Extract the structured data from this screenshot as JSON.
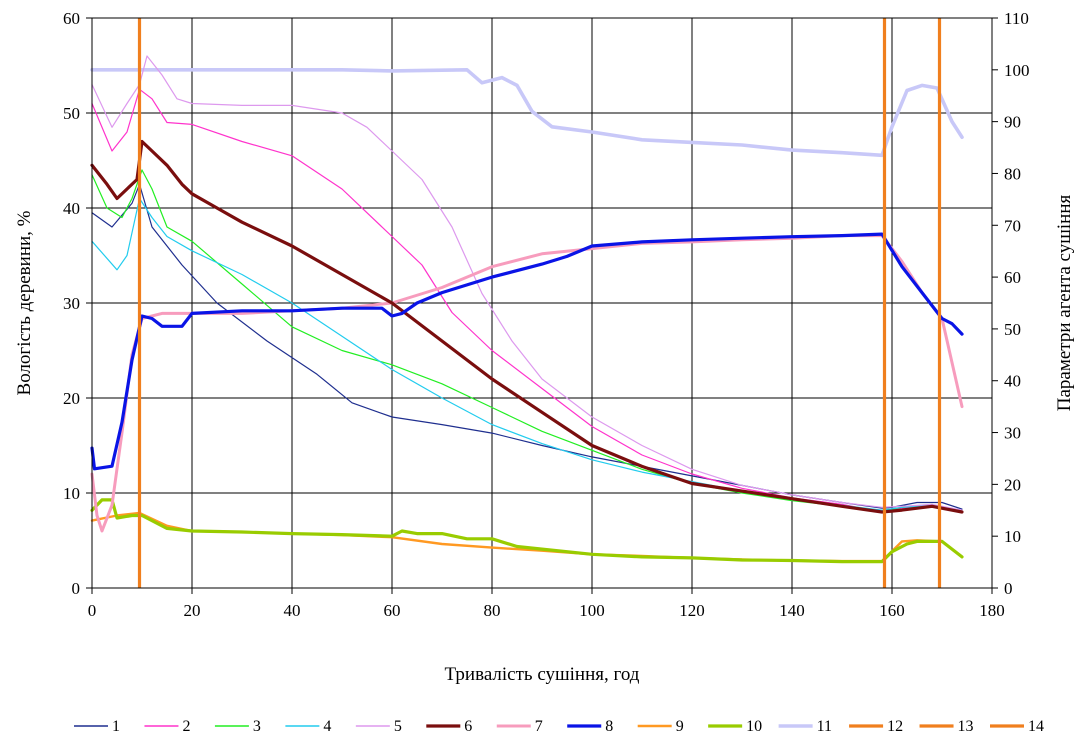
{
  "chart_data": {
    "type": "line",
    "xlabel": "Тривалість сушіння, год",
    "ylabel": "Вологість деревини, %",
    "y2label": "Параметри агента сушіння",
    "xlim": [
      0,
      180
    ],
    "ylim": [
      0,
      60
    ],
    "y2lim": [
      0,
      110
    ],
    "xticks": [
      "0",
      "20",
      "40",
      "60",
      "80",
      "100",
      "120",
      "140",
      "160",
      "180"
    ],
    "yticks": [
      "0",
      "10",
      "20",
      "30",
      "40",
      "50",
      "60"
    ],
    "y2ticks": [
      "0",
      "10",
      "20",
      "30",
      "40",
      "50",
      "60",
      "70",
      "80",
      "90",
      "100",
      "110"
    ],
    "grid": true,
    "legend_position": "bottom",
    "series": [
      {
        "name": "1",
        "axis": "left",
        "color": "#1f2f8f",
        "width": 1.2,
        "points": [
          [
            0,
            39.5
          ],
          [
            4,
            38
          ],
          [
            8,
            40.5
          ],
          [
            9.5,
            42.5
          ],
          [
            12,
            38
          ],
          [
            18,
            34
          ],
          [
            25,
            30
          ],
          [
            35,
            26
          ],
          [
            45,
            22.5
          ],
          [
            52,
            19.5
          ],
          [
            60,
            18
          ],
          [
            70,
            17.2
          ],
          [
            80,
            16.3
          ],
          [
            90,
            15
          ],
          [
            100,
            13.8
          ],
          [
            110,
            12.8
          ],
          [
            120,
            11.8
          ],
          [
            130,
            10.8
          ],
          [
            140,
            9.8
          ],
          [
            150,
            9
          ],
          [
            158,
            8.4
          ],
          [
            160,
            8.5
          ],
          [
            165,
            9
          ],
          [
            170,
            9
          ],
          [
            174,
            8.3
          ]
        ]
      },
      {
        "name": "2",
        "axis": "left",
        "color": "#ff33cc",
        "width": 1.2,
        "points": [
          [
            0,
            51
          ],
          [
            4,
            46
          ],
          [
            7,
            48
          ],
          [
            9.5,
            52.5
          ],
          [
            12,
            51.5
          ],
          [
            15,
            49
          ],
          [
            20,
            48.8
          ],
          [
            30,
            47
          ],
          [
            40,
            45.5
          ],
          [
            50,
            42
          ],
          [
            60,
            37
          ],
          [
            66,
            34
          ],
          [
            72,
            29
          ],
          [
            80,
            25
          ],
          [
            90,
            21
          ],
          [
            100,
            17
          ],
          [
            110,
            14
          ],
          [
            120,
            12
          ],
          [
            130,
            10.5
          ],
          [
            140,
            9.5
          ],
          [
            150,
            8.8
          ],
          [
            158,
            8
          ],
          [
            162,
            8.4
          ],
          [
            168,
            8.6
          ],
          [
            174,
            8
          ]
        ]
      },
      {
        "name": "3",
        "axis": "left",
        "color": "#22ee22",
        "width": 1.2,
        "points": [
          [
            0,
            43.5
          ],
          [
            3,
            40
          ],
          [
            6,
            39
          ],
          [
            8,
            41
          ],
          [
            10,
            44
          ],
          [
            12,
            42
          ],
          [
            15,
            38
          ],
          [
            20,
            36.5
          ],
          [
            30,
            32
          ],
          [
            40,
            27.5
          ],
          [
            50,
            25
          ],
          [
            60,
            23.5
          ],
          [
            70,
            21.5
          ],
          [
            80,
            19
          ],
          [
            90,
            16.5
          ],
          [
            100,
            14.5
          ],
          [
            110,
            12.5
          ],
          [
            120,
            11
          ],
          [
            130,
            10
          ],
          [
            140,
            9.2
          ],
          [
            150,
            8.6
          ],
          [
            158,
            8.1
          ],
          [
            162,
            8.5
          ],
          [
            168,
            8.7
          ],
          [
            174,
            8
          ]
        ]
      },
      {
        "name": "4",
        "axis": "left",
        "color": "#22ccee",
        "width": 1.2,
        "points": [
          [
            0,
            36.5
          ],
          [
            5,
            33.5
          ],
          [
            7,
            35
          ],
          [
            9.5,
            41
          ],
          [
            12,
            39
          ],
          [
            15,
            37
          ],
          [
            20,
            35.5
          ],
          [
            30,
            33
          ],
          [
            40,
            30
          ],
          [
            50,
            26.5
          ],
          [
            60,
            23
          ],
          [
            70,
            20
          ],
          [
            80,
            17.2
          ],
          [
            90,
            15.2
          ],
          [
            100,
            13.5
          ],
          [
            110,
            12.2
          ],
          [
            120,
            11.2
          ],
          [
            130,
            10.2
          ],
          [
            140,
            9.3
          ],
          [
            150,
            8.7
          ],
          [
            158,
            8.2
          ],
          [
            162,
            8.5
          ],
          [
            168,
            8.7
          ],
          [
            174,
            8
          ]
        ]
      },
      {
        "name": "5",
        "axis": "left",
        "color": "#dd99ee",
        "width": 1.2,
        "points": [
          [
            0,
            53
          ],
          [
            4,
            48.5
          ],
          [
            7,
            51
          ],
          [
            9.5,
            53
          ],
          [
            11,
            56
          ],
          [
            14,
            54
          ],
          [
            17,
            51.5
          ],
          [
            20,
            51
          ],
          [
            30,
            50.8
          ],
          [
            40,
            50.8
          ],
          [
            50,
            50
          ],
          [
            55,
            48.5
          ],
          [
            60,
            46
          ],
          [
            66,
            43
          ],
          [
            72,
            38
          ],
          [
            78,
            31
          ],
          [
            84,
            26
          ],
          [
            90,
            22
          ],
          [
            100,
            18
          ],
          [
            110,
            15
          ],
          [
            120,
            12.5
          ],
          [
            130,
            10.8
          ],
          [
            140,
            9.8
          ],
          [
            150,
            9
          ],
          [
            158,
            8.5
          ],
          [
            162,
            8.6
          ],
          [
            168,
            8.8
          ],
          [
            174,
            8.2
          ]
        ]
      },
      {
        "name": "6",
        "axis": "left",
        "color": "#7a0e0e",
        "width": 3.2,
        "points": [
          [
            0,
            44.5
          ],
          [
            3,
            42.5
          ],
          [
            5,
            41
          ],
          [
            7,
            42
          ],
          [
            9,
            43
          ],
          [
            10,
            47
          ],
          [
            12,
            46
          ],
          [
            15,
            44.5
          ],
          [
            18,
            42.5
          ],
          [
            20,
            41.5
          ],
          [
            25,
            40
          ],
          [
            30,
            38.5
          ],
          [
            40,
            36
          ],
          [
            50,
            33
          ],
          [
            60,
            30
          ],
          [
            70,
            26
          ],
          [
            80,
            22
          ],
          [
            90,
            18.5
          ],
          [
            100,
            15
          ],
          [
            110,
            12.8
          ],
          [
            120,
            11
          ],
          [
            130,
            10.2
          ],
          [
            140,
            9.4
          ],
          [
            150,
            8.6
          ],
          [
            158,
            8
          ],
          [
            162,
            8.2
          ],
          [
            168,
            8.6
          ],
          [
            174,
            8
          ]
        ]
      },
      {
        "name": "7",
        "axis": "right",
        "color": "#f79cbd",
        "width": 3.0,
        "points": [
          [
            0,
            22
          ],
          [
            1,
            14
          ],
          [
            2,
            11
          ],
          [
            4,
            16
          ],
          [
            6,
            30
          ],
          [
            8,
            45
          ],
          [
            10,
            52
          ],
          [
            14,
            53
          ],
          [
            20,
            53
          ],
          [
            30,
            53
          ],
          [
            40,
            53.5
          ],
          [
            50,
            54
          ],
          [
            60,
            55
          ],
          [
            70,
            58
          ],
          [
            80,
            62
          ],
          [
            90,
            64.5
          ],
          [
            100,
            65.5
          ],
          [
            110,
            66.5
          ],
          [
            120,
            66.8
          ],
          [
            130,
            67.2
          ],
          [
            140,
            67.5
          ],
          [
            150,
            68
          ],
          [
            158,
            68
          ],
          [
            162,
            63
          ],
          [
            166,
            57
          ],
          [
            170,
            52
          ],
          [
            174,
            35
          ]
        ]
      },
      {
        "name": "8",
        "axis": "right",
        "color": "#0a14e6",
        "width": 3.2,
        "points": [
          [
            0,
            27
          ],
          [
            0.5,
            23
          ],
          [
            4,
            23.5
          ],
          [
            6,
            32
          ],
          [
            8,
            44
          ],
          [
            10,
            52.5
          ],
          [
            12,
            52
          ],
          [
            14,
            50.5
          ],
          [
            18,
            50.5
          ],
          [
            20,
            53
          ],
          [
            30,
            53.5
          ],
          [
            40,
            53.5
          ],
          [
            50,
            54
          ],
          [
            58,
            54
          ],
          [
            60,
            52.5
          ],
          [
            62,
            53
          ],
          [
            65,
            55
          ],
          [
            70,
            57
          ],
          [
            75,
            58.5
          ],
          [
            80,
            60
          ],
          [
            90,
            62.5
          ],
          [
            95,
            64
          ],
          [
            100,
            66
          ],
          [
            110,
            66.8
          ],
          [
            120,
            67.2
          ],
          [
            130,
            67.5
          ],
          [
            140,
            67.8
          ],
          [
            150,
            68
          ],
          [
            158,
            68.3
          ],
          [
            162,
            62
          ],
          [
            166,
            57
          ],
          [
            170,
            52
          ],
          [
            172,
            51
          ],
          [
            174,
            49
          ]
        ]
      },
      {
        "name": "9",
        "axis": "right",
        "color": "#ff9922",
        "width": 2.4,
        "points": [
          [
            0,
            13
          ],
          [
            5,
            14
          ],
          [
            9.5,
            14.5
          ],
          [
            15,
            12
          ],
          [
            20,
            11
          ],
          [
            30,
            10.8
          ],
          [
            40,
            10.5
          ],
          [
            50,
            10.2
          ],
          [
            60,
            9.8
          ],
          [
            70,
            8.5
          ],
          [
            80,
            7.8
          ],
          [
            90,
            7.2
          ],
          [
            100,
            6.5
          ],
          [
            110,
            6.2
          ],
          [
            120,
            5.8
          ],
          [
            130,
            5.5
          ],
          [
            140,
            5.3
          ],
          [
            150,
            5.2
          ],
          [
            158,
            5.2
          ],
          [
            162,
            9
          ],
          [
            165,
            9.2
          ],
          [
            170,
            9
          ],
          [
            174,
            6
          ]
        ]
      },
      {
        "name": "10",
        "axis": "right",
        "color": "#99cc00",
        "width": 3.2,
        "points": [
          [
            0,
            15
          ],
          [
            2,
            17
          ],
          [
            4,
            17
          ],
          [
            5,
            13.5
          ],
          [
            8,
            14
          ],
          [
            10,
            14
          ],
          [
            15,
            11.5
          ],
          [
            20,
            11
          ],
          [
            30,
            10.8
          ],
          [
            40,
            10.5
          ],
          [
            50,
            10.3
          ],
          [
            60,
            10
          ],
          [
            62,
            11
          ],
          [
            65,
            10.5
          ],
          [
            70,
            10.5
          ],
          [
            75,
            9.5
          ],
          [
            80,
            9.5
          ],
          [
            85,
            8
          ],
          [
            90,
            7.5
          ],
          [
            100,
            6.5
          ],
          [
            110,
            6
          ],
          [
            120,
            5.8
          ],
          [
            130,
            5.4
          ],
          [
            140,
            5.3
          ],
          [
            150,
            5.1
          ],
          [
            158,
            5.1
          ],
          [
            160,
            7
          ],
          [
            163,
            8.5
          ],
          [
            165,
            9
          ],
          [
            170,
            9
          ],
          [
            172,
            7.5
          ],
          [
            174,
            6
          ]
        ]
      },
      {
        "name": "11",
        "axis": "right",
        "color": "#c8c8f8",
        "width": 3.6,
        "points": [
          [
            0,
            100
          ],
          [
            10,
            100
          ],
          [
            20,
            100
          ],
          [
            40,
            100
          ],
          [
            50,
            100
          ],
          [
            60,
            99.8
          ],
          [
            75,
            100
          ],
          [
            78,
            97.5
          ],
          [
            82,
            98.5
          ],
          [
            85,
            97
          ],
          [
            88,
            92
          ],
          [
            92,
            89
          ],
          [
            100,
            88
          ],
          [
            110,
            86.5
          ],
          [
            120,
            86
          ],
          [
            130,
            85.5
          ],
          [
            140,
            84.5
          ],
          [
            150,
            84
          ],
          [
            158,
            83.5
          ],
          [
            160,
            89
          ],
          [
            163,
            96
          ],
          [
            166,
            97
          ],
          [
            169,
            96.5
          ],
          [
            172,
            90
          ],
          [
            174,
            87
          ]
        ]
      },
      {
        "name": "12",
        "axis": "vline",
        "color": "#f07f1e",
        "width": 3.2,
        "x": 9.5
      },
      {
        "name": "13",
        "axis": "vline",
        "color": "#f07f1e",
        "width": 3.2,
        "x": 158.5
      },
      {
        "name": "14",
        "axis": "vline",
        "color": "#f07f1e",
        "width": 3.2,
        "x": 169.5
      }
    ]
  }
}
